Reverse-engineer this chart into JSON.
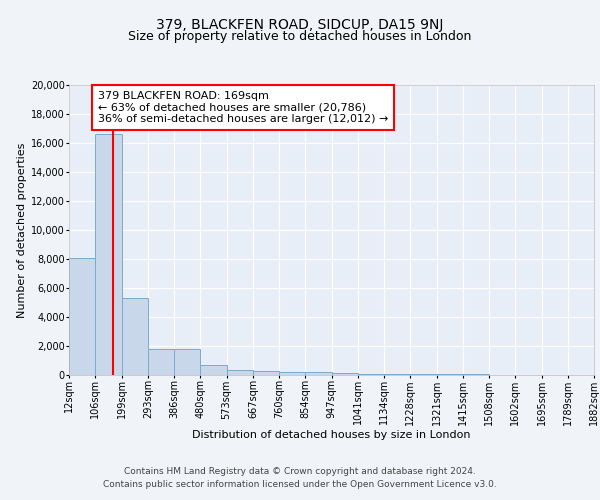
{
  "title": "379, BLACKFEN ROAD, SIDCUP, DA15 9NJ",
  "subtitle": "Size of property relative to detached houses in London",
  "xlabel": "Distribution of detached houses by size in London",
  "ylabel": "Number of detached properties",
  "bar_values": [
    8100,
    16600,
    5300,
    1800,
    1800,
    700,
    350,
    250,
    200,
    200,
    150,
    100,
    80,
    60,
    50,
    40,
    30,
    20,
    15,
    10
  ],
  "bin_edges": [
    12,
    106,
    199,
    293,
    386,
    480,
    573,
    667,
    760,
    854,
    947,
    1041,
    1134,
    1228,
    1321,
    1415,
    1508,
    1602,
    1695,
    1789,
    1882
  ],
  "tick_labels": [
    "12sqm",
    "106sqm",
    "199sqm",
    "293sqm",
    "386sqm",
    "480sqm",
    "573sqm",
    "667sqm",
    "760sqm",
    "854sqm",
    "947sqm",
    "1041sqm",
    "1134sqm",
    "1228sqm",
    "1321sqm",
    "1415sqm",
    "1508sqm",
    "1602sqm",
    "1695sqm",
    "1789sqm",
    "1882sqm"
  ],
  "property_size": 169,
  "property_label": "379 BLACKFEN ROAD: 169sqm",
  "annotation_line1": "← 63% of detached houses are smaller (20,786)",
  "annotation_line2": "36% of semi-detached houses are larger (12,012) →",
  "bar_color": "#c8d8ea",
  "bar_edge_color": "#7aaacc",
  "bar_edge_width": 0.7,
  "marker_color": "red",
  "marker_linewidth": 1.5,
  "bg_color": "#f0f4f8",
  "plot_bg_color": "#e8eef8",
  "ylim": [
    0,
    20000
  ],
  "yticks": [
    0,
    2000,
    4000,
    6000,
    8000,
    10000,
    12000,
    14000,
    16000,
    18000,
    20000
  ],
  "footnote1": "Contains HM Land Registry data © Crown copyright and database right 2024.",
  "footnote2": "Contains public sector information licensed under the Open Government Licence v3.0.",
  "title_fontsize": 10,
  "subtitle_fontsize": 9,
  "axis_label_fontsize": 8,
  "tick_fontsize": 7,
  "annotation_fontsize": 8,
  "footnote_fontsize": 6.5
}
